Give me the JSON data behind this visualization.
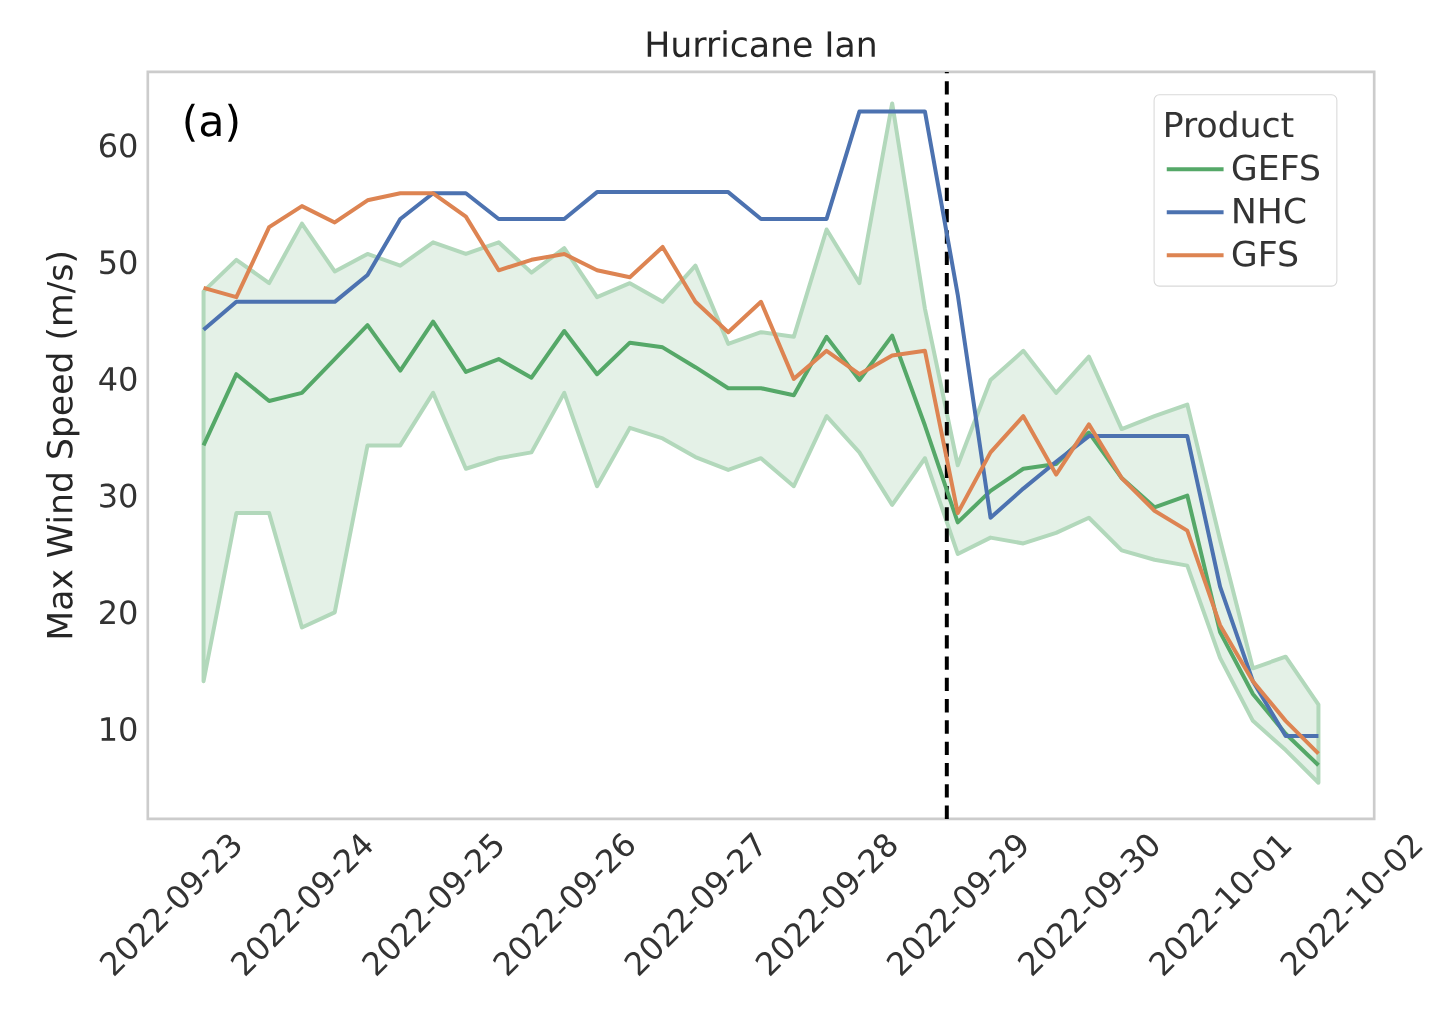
{
  "chart_data": {
    "type": "line",
    "title": "Hurricane Ian",
    "xlabel": null,
    "ylabel": "Max Wind Speed (m/s)",
    "legend_title": "Product",
    "legend": "top right",
    "annotations": [
      "(a)"
    ],
    "x": [
      "2022-09-23T06:00",
      "2022-09-23T12:00",
      "2022-09-23T18:00",
      "2022-09-24T00:00",
      "2022-09-24T06:00",
      "2022-09-24T12:00",
      "2022-09-24T18:00",
      "2022-09-25T00:00",
      "2022-09-25T06:00",
      "2022-09-25T12:00",
      "2022-09-25T18:00",
      "2022-09-26T00:00",
      "2022-09-26T06:00",
      "2022-09-26T12:00",
      "2022-09-26T18:00",
      "2022-09-27T00:00",
      "2022-09-27T06:00",
      "2022-09-27T12:00",
      "2022-09-27T18:00",
      "2022-09-28T00:00",
      "2022-09-28T06:00",
      "2022-09-28T12:00",
      "2022-09-28T18:00",
      "2022-09-29T00:00",
      "2022-09-29T06:00",
      "2022-09-29T12:00",
      "2022-09-29T18:00",
      "2022-09-30T00:00",
      "2022-09-30T06:00",
      "2022-09-30T12:00",
      "2022-09-30T18:00",
      "2022-10-01T00:00",
      "2022-10-01T06:00",
      "2022-10-01T12:00",
      "2022-10-01T18:00"
    ],
    "series": [
      {
        "name": "GEFS",
        "color": "#55a868",
        "values": [
          34.3,
          40.4,
          38.1,
          38.8,
          41.7,
          44.6,
          40.7,
          44.9,
          40.6,
          41.7,
          40.1,
          44.1,
          40.4,
          43.1,
          42.7,
          41.0,
          39.2,
          39.2,
          38.6,
          43.6,
          39.9,
          43.7,
          36.0,
          27.7,
          30.4,
          32.3,
          32.7,
          35.4,
          31.5,
          29.0,
          30.0,
          18.3,
          13.0,
          9.6,
          6.9
        ],
        "lower": [
          14.1,
          28.5,
          28.5,
          18.7,
          20.0,
          34.3,
          34.3,
          38.8,
          32.3,
          33.2,
          33.7,
          38.8,
          30.8,
          35.8,
          34.9,
          33.3,
          32.2,
          33.2,
          30.8,
          36.8,
          33.7,
          29.2,
          33.2,
          25.0,
          26.4,
          25.9,
          26.8,
          28.1,
          25.3,
          24.5,
          24.0,
          16.1,
          10.7,
          8.2,
          5.4
        ],
        "upper": [
          47.5,
          50.2,
          48.2,
          53.3,
          49.2,
          50.7,
          49.7,
          51.7,
          50.7,
          51.7,
          49.1,
          51.2,
          47.0,
          48.2,
          46.6,
          49.7,
          43.0,
          44.0,
          43.6,
          52.8,
          48.2,
          63.6,
          46.0,
          32.6,
          39.9,
          42.4,
          38.8,
          41.9,
          35.7,
          36.8,
          37.8,
          26.2,
          15.2,
          16.2,
          12.1
        ]
      },
      {
        "name": "NHC",
        "color": "#4c72b0",
        "values": [
          44.2,
          46.6,
          46.6,
          46.6,
          46.6,
          48.9,
          53.7,
          55.9,
          55.9,
          53.7,
          53.7,
          53.7,
          56.0,
          56.0,
          56.0,
          56.0,
          56.0,
          53.7,
          53.7,
          53.7,
          62.9,
          62.9,
          62.9,
          47.2,
          28.1,
          30.6,
          32.9,
          35.1,
          35.1,
          35.1,
          35.1,
          22.2,
          14.1,
          9.4,
          9.4
        ]
      },
      {
        "name": "GFS",
        "color": "#dd8452",
        "values": [
          47.8,
          47.0,
          53.0,
          54.8,
          53.4,
          55.3,
          55.9,
          55.9,
          53.9,
          49.3,
          50.2,
          50.7,
          49.3,
          48.7,
          51.3,
          46.6,
          44.0,
          46.6,
          40.0,
          42.4,
          40.4,
          42.0,
          42.4,
          28.5,
          33.7,
          36.8,
          31.8,
          36.1,
          31.5,
          28.7,
          27.0,
          18.9,
          14.1,
          10.7,
          7.9
        ]
      }
    ],
    "ref_lines": [
      {
        "axis": "x",
        "value": "2022-09-28T22:00",
        "color": "#000000",
        "line_style": "dashed"
      }
    ],
    "xlim": [
      "2022-09-22T19:48",
      "2022-10-02T04:12"
    ],
    "ylim": [
      2.3,
      66.3
    ],
    "xticks": [
      "2022-09-23",
      "2022-09-24",
      "2022-09-25",
      "2022-09-26",
      "2022-09-27",
      "2022-09-28",
      "2022-09-29",
      "2022-09-30",
      "2022-10-01",
      "2022-10-02"
    ],
    "yticks": [
      10,
      20,
      30,
      40,
      50,
      60
    ],
    "grid": false,
    "marker": "none",
    "line_style": "solid"
  }
}
